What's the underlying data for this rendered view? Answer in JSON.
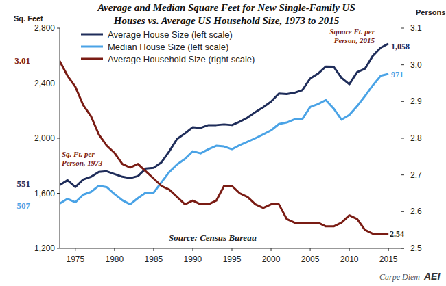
{
  "chart_data": {
    "type": "line",
    "title": [
      "Average and Median Square Feet for New Single-Family US",
      "Houses vs. Average US Household Size, 1973 to 2015"
    ],
    "y_label": "Sq. Feet",
    "y2_label": "Persons",
    "x": [
      1973,
      1974,
      1975,
      1976,
      1977,
      1978,
      1979,
      1980,
      1981,
      1982,
      1983,
      1984,
      1985,
      1986,
      1987,
      1988,
      1989,
      1990,
      1991,
      1992,
      1993,
      1994,
      1995,
      1996,
      1997,
      1998,
      1999,
      2000,
      2001,
      2002,
      2003,
      2004,
      2005,
      2006,
      2007,
      2008,
      2009,
      2010,
      2011,
      2012,
      2013,
      2014,
      2015
    ],
    "xlim": [
      1973,
      2017
    ],
    "xticks": [
      1975,
      1980,
      1985,
      1990,
      1995,
      2000,
      2005,
      2010,
      2015
    ],
    "ylim": [
      1200,
      2800
    ],
    "yticks": [
      {
        "value": 1200,
        "label": "1,200"
      },
      {
        "value": 1600,
        "label": "1,600"
      },
      {
        "value": 2000,
        "label": "2,000"
      },
      {
        "value": 2400,
        "label": "2,400"
      },
      {
        "value": 2800,
        "label": "2,800"
      }
    ],
    "y2lim": [
      2.5,
      3.1
    ],
    "y2ticks": [
      2.5,
      2.6,
      2.7,
      2.8,
      2.9,
      {
        "value": 3,
        "label": "3.0"
      },
      3.1
    ],
    "legend": "top-left",
    "grid": false,
    "series": [
      {
        "name": "Average House Size (left scale)",
        "color": "#1f2d5a",
        "values": [
          1660,
          1695,
          1645,
          1700,
          1720,
          1755,
          1760,
          1740,
          1720,
          1710,
          1725,
          1780,
          1785,
          1825,
          1905,
          1995,
          2035,
          2080,
          2075,
          2095,
          2095,
          2100,
          2095,
          2120,
          2150,
          2190,
          2225,
          2266,
          2324,
          2320,
          2330,
          2349,
          2434,
          2469,
          2521,
          2519,
          2438,
          2392,
          2480,
          2505,
          2598,
          2657,
          2687
        ]
      },
      {
        "name": "Median House Size (left scale)",
        "color": "#4aa3e6",
        "values": [
          1525,
          1560,
          1535,
          1590,
          1610,
          1655,
          1645,
          1595,
          1550,
          1520,
          1565,
          1605,
          1605,
          1680,
          1755,
          1810,
          1850,
          1905,
          1890,
          1920,
          1945,
          1940,
          1920,
          1950,
          1975,
          2000,
          2028,
          2057,
          2103,
          2114,
          2137,
          2140,
          2227,
          2248,
          2277,
          2215,
          2135,
          2169,
          2233,
          2306,
          2384,
          2453,
          2467
        ]
      },
      {
        "name": "Average Household Size (right scale)",
        "color": "#7a1c14",
        "axis": "y2",
        "values": [
          3.01,
          2.97,
          2.94,
          2.89,
          2.86,
          2.81,
          2.78,
          2.76,
          2.73,
          2.72,
          2.73,
          2.71,
          2.69,
          2.67,
          2.66,
          2.64,
          2.62,
          2.63,
          2.62,
          2.62,
          2.63,
          2.67,
          2.67,
          2.65,
          2.64,
          2.62,
          2.61,
          2.62,
          2.62,
          2.58,
          2.57,
          2.57,
          2.57,
          2.57,
          2.56,
          2.56,
          2.57,
          2.59,
          2.58,
          2.55,
          2.54,
          2.54,
          2.54
        ]
      }
    ],
    "annotations": [
      {
        "text": "3.01"
      },
      {
        "text": "551"
      },
      {
        "text": "507"
      },
      {
        "lines": [
          "Sq. Ft. per",
          "Person, 1973"
        ]
      },
      {
        "lines": [
          "Square Ft. per",
          "Person, 2015"
        ]
      },
      {
        "text": "1,058"
      },
      {
        "text": "971"
      },
      {
        "text": "2.54"
      },
      {
        "text": "Source: Census Bureau"
      },
      {
        "text": "Carpe Diem"
      },
      {
        "text": "AEI"
      }
    ]
  }
}
